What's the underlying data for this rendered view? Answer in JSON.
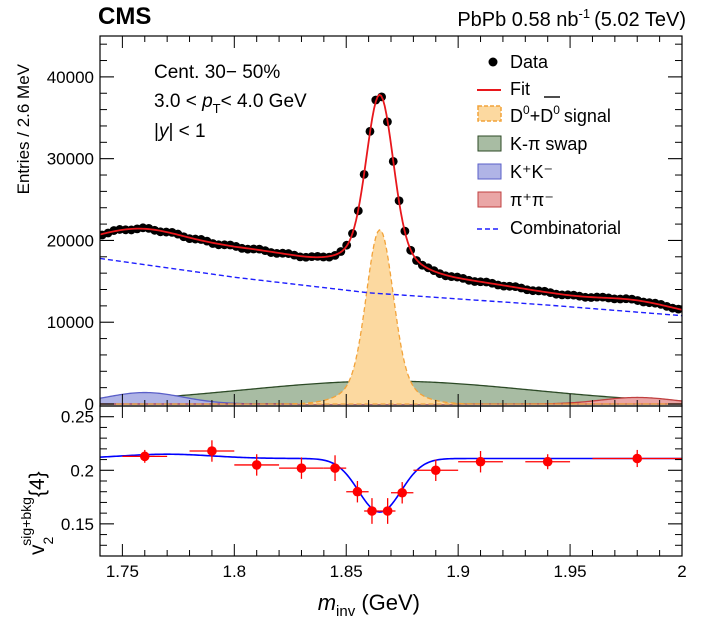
{
  "header": {
    "experiment": "CMS",
    "collision": "PbPb 0.58 nb",
    "collision_sup": "-1",
    "energy": "(5.02 TeV)"
  },
  "annotations": {
    "centrality": "Cent. 30− 50%",
    "pt_pre": "3.0 < ",
    "pt_p": "p",
    "pt_sub": "T",
    "pt_post": "< 4.0 GeV",
    "rap_pre": "|",
    "rap_y": "y",
    "rap_post": "| < 1"
  },
  "legend": {
    "data": "Data",
    "fit": "Fit",
    "signal": "signal",
    "kpi_swap": "K-π swap",
    "kk": "K⁺K⁻",
    "pipi": "π⁺π⁻",
    "combinatorial": "Combinatorial"
  },
  "colors": {
    "data": "#000000",
    "fit": "#e8171c",
    "signal_fill": "#fcd9a0",
    "signal_line": "#f2a33a",
    "swap_fill": "#a8bca3",
    "swap_line": "#2c4a26",
    "kk_fill": "#b0b4e6",
    "kk_line": "#5a5fc8",
    "pipi_fill": "#eaa6a6",
    "pipi_line": "#c04040",
    "comb_line": "#1f1fff",
    "v2_points": "#ff0000",
    "v2_fit": "#0000ff"
  },
  "chart_data": [
    {
      "type": "line",
      "panel": "top",
      "ylabel": "Entries / 2.6 MeV",
      "xlim": [
        1.74,
        2.0
      ],
      "ylim": [
        0,
        45000
      ],
      "yticks": [
        0,
        10000,
        20000,
        30000,
        40000
      ],
      "ytick_labels": [
        "0",
        "10000",
        "20000",
        "30000",
        "40000"
      ],
      "series": [
        {
          "name": "Data",
          "style": "points"
        },
        {
          "name": "Fit",
          "style": "line"
        },
        {
          "name": "D0+D0bar signal",
          "style": "filled",
          "mean": 1.865,
          "sigma": 0.0058,
          "amplitude": 21300
        },
        {
          "name": "K-pi swap",
          "style": "filled",
          "mean": 1.868,
          "sigma": 0.065,
          "amplitude": 2800
        },
        {
          "name": "K+K-",
          "style": "filled",
          "mean": 1.76,
          "peak_value": 1400
        },
        {
          "name": "pi+pi-",
          "style": "filled",
          "mean": 1.98,
          "peak_value": 800
        },
        {
          "name": "Combinatorial",
          "style": "dashed",
          "x": [
            1.74,
            1.8,
            1.86,
            1.94,
            2.0
          ],
          "y": [
            17800,
            15500,
            13600,
            12100,
            10800
          ]
        }
      ]
    },
    {
      "type": "scatter",
      "panel": "bottom",
      "xlabel": "m_inv (GeV)",
      "ylabel": "v2 sig+bkg {4}",
      "xlim": [
        1.74,
        2.0
      ],
      "ylim": [
        0.12,
        0.26
      ],
      "xticks": [
        1.75,
        1.8,
        1.85,
        1.9,
        1.95,
        2.0
      ],
      "xtick_labels": [
        "1.75",
        "1.8",
        "1.85",
        "1.9",
        "1.95",
        "2"
      ],
      "yticks": [
        0.15,
        0.2,
        0.25
      ],
      "ytick_labels": [
        "0.15",
        "0.2",
        "0.25"
      ],
      "points": [
        {
          "x": 1.76,
          "y": 0.213,
          "xerr": 0.01,
          "yerr": 0.006
        },
        {
          "x": 1.79,
          "y": 0.218,
          "xerr": 0.01,
          "yerr": 0.01
        },
        {
          "x": 1.81,
          "y": 0.205,
          "xerr": 0.01,
          "yerr": 0.01
        },
        {
          "x": 1.83,
          "y": 0.202,
          "xerr": 0.01,
          "yerr": 0.01
        },
        {
          "x": 1.845,
          "y": 0.202,
          "xerr": 0.005,
          "yerr": 0.012
        },
        {
          "x": 1.855,
          "y": 0.18,
          "xerr": 0.005,
          "yerr": 0.01
        },
        {
          "x": 1.8615,
          "y": 0.162,
          "xerr": 0.0035,
          "yerr": 0.012
        },
        {
          "x": 1.8685,
          "y": 0.162,
          "xerr": 0.0035,
          "yerr": 0.012
        },
        {
          "x": 1.875,
          "y": 0.179,
          "xerr": 0.005,
          "yerr": 0.01
        },
        {
          "x": 1.89,
          "y": 0.2,
          "xerr": 0.01,
          "yerr": 0.01
        },
        {
          "x": 1.91,
          "y": 0.208,
          "xerr": 0.01,
          "yerr": 0.01
        },
        {
          "x": 1.94,
          "y": 0.208,
          "xerr": 0.01,
          "yerr": 0.007
        },
        {
          "x": 1.98,
          "y": 0.211,
          "xerr": 0.02,
          "yerr": 0.008
        }
      ],
      "fit": {
        "baseline": 0.211,
        "dip_depth": 0.05,
        "dip_mean": 1.865,
        "dip_sigma": 0.0095
      }
    }
  ]
}
